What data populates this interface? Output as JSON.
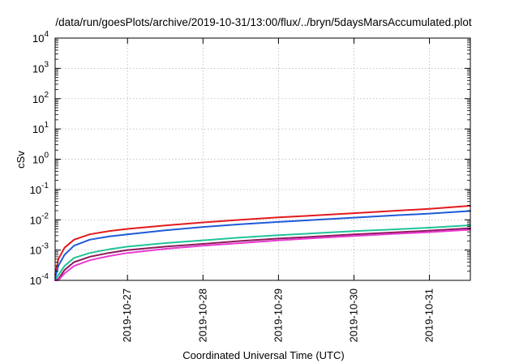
{
  "chart_data": {
    "type": "line",
    "title": "/data/run/goesPlots/archive/2019-10-31/13:00/flux/../bryn/5daysMarsAccumulated.plot",
    "xlabel": "Coordinated Universal Time (UTC)",
    "ylabel": "cSv",
    "y_scale": "log",
    "ylim": [
      0.0001,
      10000
    ],
    "y_ticks": [
      {
        "value": 0.0001,
        "base": "10",
        "exp": "-4"
      },
      {
        "value": 0.001,
        "base": "10",
        "exp": "-3"
      },
      {
        "value": 0.01,
        "base": "10",
        "exp": "-2"
      },
      {
        "value": 0.1,
        "base": "10",
        "exp": "-1"
      },
      {
        "value": 1,
        "base": "10",
        "exp": "0"
      },
      {
        "value": 10,
        "base": "10",
        "exp": "1"
      },
      {
        "value": 100,
        "base": "10",
        "exp": "2"
      },
      {
        "value": 1000,
        "base": "10",
        "exp": "3"
      },
      {
        "value": 10000,
        "base": "10",
        "exp": "4"
      }
    ],
    "xlim": [
      "2019-10-26T01:00",
      "2019-10-31T13:00"
    ],
    "x_ticks": [
      "2019-10-27",
      "2019-10-28",
      "2019-10-29",
      "2019-10-30",
      "2019-10-31"
    ],
    "grid": true,
    "legend": "none",
    "x": [
      "2019-10-26T01:00",
      "2019-10-26T02:00",
      "2019-10-26T04:00",
      "2019-10-26T07:00",
      "2019-10-26T12:00",
      "2019-10-26T18:00",
      "2019-10-27T00:00",
      "2019-10-27T12:00",
      "2019-10-28T00:00",
      "2019-10-28T12:00",
      "2019-10-29T00:00",
      "2019-10-29T12:00",
      "2019-10-30T00:00",
      "2019-10-30T12:00",
      "2019-10-31T00:00",
      "2019-10-31T13:00"
    ],
    "series": [
      {
        "color": "#e31a1c",
        "values": [
          0.00015,
          0.0005,
          0.0012,
          0.0022,
          0.0033,
          0.0042,
          0.005,
          0.0065,
          0.0082,
          0.01,
          0.012,
          0.014,
          0.0165,
          0.0195,
          0.023,
          0.029
        ]
      },
      {
        "color": "#1f5bd8",
        "values": [
          0.00012,
          0.0003,
          0.0007,
          0.0014,
          0.0022,
          0.0028,
          0.0033,
          0.0045,
          0.0058,
          0.0071,
          0.0085,
          0.01,
          0.0118,
          0.0138,
          0.016,
          0.0195
        ]
      },
      {
        "color": "#22c39a",
        "values": [
          0.0001,
          0.00015,
          0.0003,
          0.00055,
          0.0008,
          0.00105,
          0.0013,
          0.0017,
          0.0021,
          0.0026,
          0.0031,
          0.0036,
          0.0042,
          0.0048,
          0.0055,
          0.0066
        ]
      },
      {
        "color": "#8e1a5c",
        "values": [
          0.0001,
          0.00011,
          0.00022,
          0.0004,
          0.0006,
          0.0008,
          0.001,
          0.0013,
          0.0016,
          0.002,
          0.0024,
          0.0028,
          0.0033,
          0.0038,
          0.0044,
          0.0053
        ]
      },
      {
        "color": "#e83ad0",
        "values": [
          0.0001,
          0.0001,
          0.00017,
          0.0003,
          0.00046,
          0.00063,
          0.0008,
          0.0011,
          0.0014,
          0.0017,
          0.0021,
          0.0025,
          0.0029,
          0.0034,
          0.0039,
          0.0047
        ]
      }
    ]
  }
}
